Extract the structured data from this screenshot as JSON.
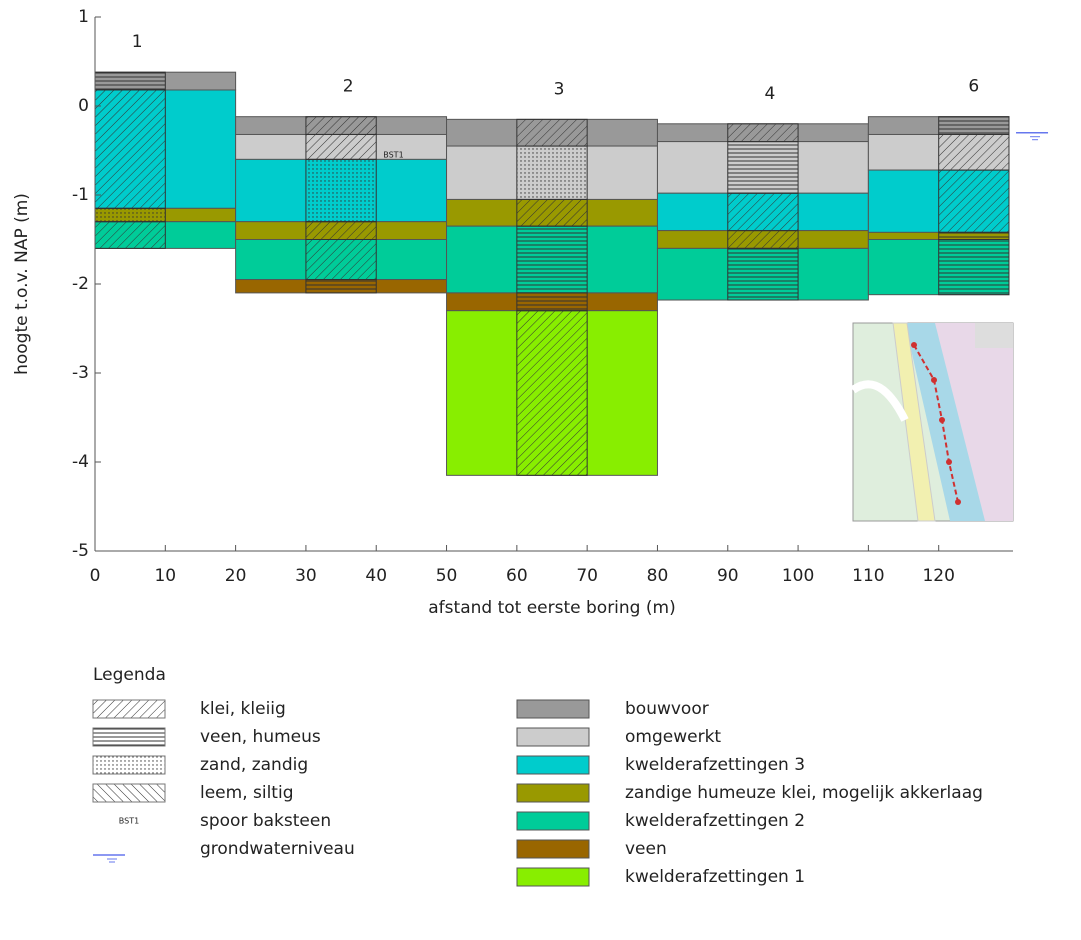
{
  "chart_data": {
    "type": "cross-section",
    "xlabel": "afstand tot eerste boring (m)",
    "ylabel": "hoogte t.o.v. NAP (m)",
    "xlim": [
      0,
      130
    ],
    "ylim": [
      -5,
      1
    ],
    "xticks": [
      0,
      10,
      20,
      30,
      40,
      50,
      60,
      70,
      80,
      90,
      100,
      110,
      120
    ],
    "yticks": [
      1,
      0,
      -1,
      -2,
      -3,
      -4,
      -5
    ],
    "boreholes": [
      {
        "name": "1",
        "label_x": 6,
        "x": [
          0,
          20
        ],
        "lith_x": [
          0,
          10
        ],
        "layers": [
          {
            "top": 0.38,
            "bottom": 0.18,
            "unit": 0
          },
          {
            "top": 0.18,
            "bottom": -1.15,
            "unit": 2
          },
          {
            "top": -1.15,
            "bottom": -1.3,
            "unit": 3
          },
          {
            "top": -1.3,
            "bottom": -1.6,
            "unit": 4
          }
        ],
        "lithology": [
          {
            "top": 0.38,
            "bottom": 0.18,
            "lith": 1
          },
          {
            "top": 0.18,
            "bottom": -1.15,
            "lith": 0
          },
          {
            "top": -1.15,
            "bottom": -1.3,
            "lith": 2
          },
          {
            "top": -1.3,
            "bottom": -1.6,
            "lith": 0
          }
        ]
      },
      {
        "name": "2",
        "label_x": 36,
        "x": [
          20,
          50
        ],
        "lith_x": [
          30,
          40
        ],
        "layers": [
          {
            "top": -0.12,
            "bottom": -0.32,
            "unit": 0
          },
          {
            "top": -0.32,
            "bottom": -0.6,
            "unit": 1
          },
          {
            "top": -0.6,
            "bottom": -1.3,
            "unit": 2
          },
          {
            "top": -1.3,
            "bottom": -1.5,
            "unit": 3
          },
          {
            "top": -1.5,
            "bottom": -1.95,
            "unit": 4
          },
          {
            "top": -1.95,
            "bottom": -2.1,
            "unit": 5
          }
        ],
        "lithology": [
          {
            "top": -0.12,
            "bottom": -0.32,
            "lith": 0
          },
          {
            "top": -0.32,
            "bottom": -0.6,
            "lith": 0
          },
          {
            "top": -0.6,
            "bottom": -1.3,
            "lith": 2
          },
          {
            "top": -1.3,
            "bottom": -1.5,
            "lith": 0
          },
          {
            "top": -1.5,
            "bottom": -1.95,
            "lith": 0
          },
          {
            "top": -1.95,
            "bottom": -2.1,
            "lith": 1
          }
        ]
      },
      {
        "name": "3",
        "label_x": 66,
        "x": [
          50,
          80
        ],
        "lith_x": [
          60,
          70
        ],
        "layers": [
          {
            "top": -0.15,
            "bottom": -0.45,
            "unit": 0
          },
          {
            "top": -0.45,
            "bottom": -1.05,
            "unit": 1
          },
          {
            "top": -1.05,
            "bottom": -1.35,
            "unit": 3
          },
          {
            "top": -1.35,
            "bottom": -2.1,
            "unit": 4
          },
          {
            "top": -2.1,
            "bottom": -2.3,
            "unit": 5
          },
          {
            "top": -2.3,
            "bottom": -4.15,
            "unit": 6
          }
        ],
        "lithology": [
          {
            "top": -0.15,
            "bottom": -0.45,
            "lith": 0
          },
          {
            "top": -0.45,
            "bottom": -1.05,
            "lith": 2
          },
          {
            "top": -1.05,
            "bottom": -1.35,
            "lith": 0
          },
          {
            "top": -1.35,
            "bottom": -2.1,
            "lith": 1
          },
          {
            "top": -2.1,
            "bottom": -2.3,
            "lith": 1
          },
          {
            "top": -2.3,
            "bottom": -4.15,
            "lith": 0
          }
        ]
      },
      {
        "name": "4",
        "label_x": 96,
        "x": [
          80,
          110
        ],
        "lith_x": [
          90,
          100
        ],
        "layers": [
          {
            "top": -0.2,
            "bottom": -0.4,
            "unit": 0
          },
          {
            "top": -0.4,
            "bottom": -0.98,
            "unit": 1
          },
          {
            "top": -0.98,
            "bottom": -1.4,
            "unit": 2
          },
          {
            "top": -1.4,
            "bottom": -1.6,
            "unit": 3
          },
          {
            "top": -1.6,
            "bottom": -2.18,
            "unit": 4
          }
        ],
        "lithology": [
          {
            "top": -0.2,
            "bottom": -0.4,
            "lith": 0
          },
          {
            "top": -0.4,
            "bottom": -0.98,
            "lith": 1
          },
          {
            "top": -0.98,
            "bottom": -1.4,
            "lith": 0
          },
          {
            "top": -1.4,
            "bottom": -1.6,
            "lith": 0
          },
          {
            "top": -1.6,
            "bottom": -2.18,
            "lith": 1
          }
        ]
      },
      {
        "name": "6",
        "label_x": 125,
        "x": [
          110,
          130
        ],
        "lith_x": [
          120,
          130
        ],
        "layers": [
          {
            "top": -0.12,
            "bottom": -0.32,
            "unit": 0
          },
          {
            "top": -0.32,
            "bottom": -0.72,
            "unit": 1
          },
          {
            "top": -0.72,
            "bottom": -1.42,
            "unit": 2
          },
          {
            "top": -1.42,
            "bottom": -1.5,
            "unit": 3
          },
          {
            "top": -1.5,
            "bottom": -2.12,
            "unit": 4
          }
        ],
        "lithology": [
          {
            "top": -0.12,
            "bottom": -0.32,
            "lith": 1
          },
          {
            "top": -0.32,
            "bottom": -0.72,
            "lith": 0
          },
          {
            "top": -0.72,
            "bottom": -1.42,
            "lith": 0
          },
          {
            "top": -1.42,
            "bottom": -1.5,
            "lith": 1
          },
          {
            "top": -1.5,
            "bottom": -2.12,
            "lith": 1
          }
        ]
      }
    ],
    "annotations": [
      {
        "text": "BST1",
        "x": 41,
        "y": -0.55,
        "color": "#e02020"
      }
    ],
    "groundwater": {
      "x": 131,
      "y": -0.3,
      "color": "#6677ee"
    },
    "legend": {
      "title": "Legenda",
      "lithology": [
        {
          "name": "klei, kleiig",
          "pattern": "diag"
        },
        {
          "name": "veen, humeus",
          "pattern": "horiz"
        },
        {
          "name": "zand, zandig",
          "pattern": "dots"
        },
        {
          "name": "leem, siltig",
          "pattern": "back"
        }
      ],
      "sample": {
        "name": "spoor baksteen",
        "symbol": "BST1"
      },
      "groundwater": {
        "name": "grondwaterniveau"
      },
      "units": [
        {
          "name": "bouwvoor",
          "color": "#999999"
        },
        {
          "name": "omgewerkt",
          "color": "#cccccc"
        },
        {
          "name": "kwelderafzettingen 3",
          "color": "#00cccc"
        },
        {
          "name": "zandige humeuze klei, mogelijk akkerlaag",
          "color": "#999900"
        },
        {
          "name": "kwelderafzettingen 2",
          "color": "#00cc99"
        },
        {
          "name": "veen",
          "color": "#996600"
        },
        {
          "name": "kwelderafzettingen 1",
          "color": "#88ee00"
        }
      ]
    }
  }
}
